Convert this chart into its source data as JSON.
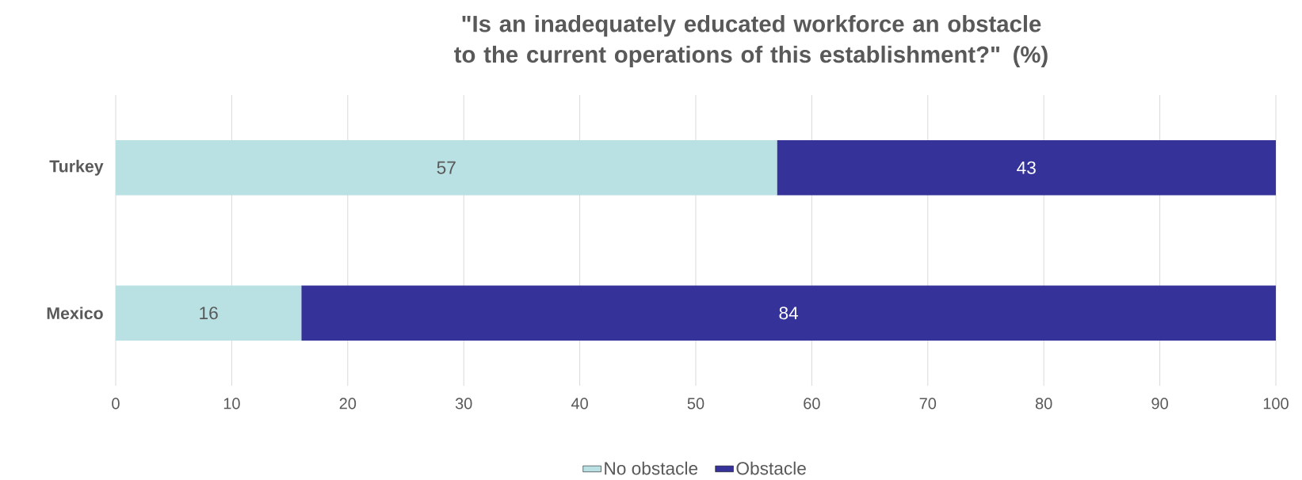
{
  "chart_data": {
    "type": "bar",
    "orientation": "horizontal",
    "stacked": true,
    "title": "\"Is an inadequately educated workforce an obstacle to the current operations of this establishment?\" (%)",
    "categories": [
      "Turkey",
      "Mexico"
    ],
    "series": [
      {
        "name": "No obstacle",
        "color": "#b9e0e3",
        "values": [
          57,
          16
        ]
      },
      {
        "name": "Obstacle",
        "color": "#353399",
        "values": [
          43,
          84
        ]
      }
    ],
    "xlim": [
      0,
      100
    ],
    "xticks": [
      0,
      10,
      20,
      30,
      40,
      50,
      60,
      70,
      80,
      90,
      100
    ],
    "grid": "x",
    "legend": "bottom",
    "data_labels": true
  }
}
